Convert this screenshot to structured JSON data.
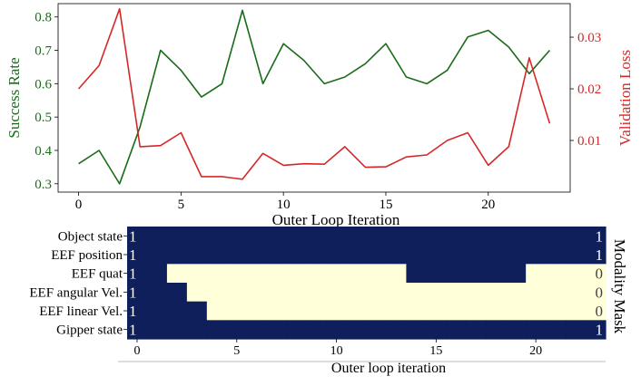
{
  "colors": {
    "green": "#1a6b1a",
    "red": "#d62728",
    "navy": "#0f1f5c",
    "cream": "#ffffd9"
  },
  "chart_data": [
    {
      "type": "line",
      "xlabel": "Outer Loop Iteration",
      "ylabel_left": "Success Rate",
      "ylabel_right": "Validation Loss",
      "x": [
        0,
        1,
        2,
        3,
        4,
        5,
        6,
        7,
        8,
        9,
        10,
        11,
        12,
        13,
        14,
        15,
        16,
        17,
        18,
        19,
        20,
        21,
        22,
        23
      ],
      "xlim": [
        -1,
        24
      ],
      "x_ticks": [
        0,
        5,
        10,
        15,
        20
      ],
      "ylim_left": [
        0.275,
        0.84
      ],
      "y_ticks_left": [
        0.3,
        0.4,
        0.5,
        0.6,
        0.7,
        0.8
      ],
      "ylim_right": [
        0.0,
        0.0365
      ],
      "y_ticks_right": [
        0.01,
        0.02,
        0.03
      ],
      "series": [
        {
          "axis": "left",
          "color": "#1a6b1a",
          "values": [
            0.36,
            0.4,
            0.3,
            0.47,
            0.7,
            0.64,
            0.56,
            0.6,
            0.82,
            0.6,
            0.72,
            0.67,
            0.6,
            0.62,
            0.66,
            0.72,
            0.62,
            0.6,
            0.64,
            0.74,
            0.76,
            0.71,
            0.63,
            0.7
          ]
        },
        {
          "axis": "right",
          "color": "#d62728",
          "values": [
            0.02,
            0.0245,
            0.0355,
            0.0088,
            0.009,
            0.0115,
            0.003,
            0.003,
            0.0025,
            0.0075,
            0.0052,
            0.0055,
            0.0054,
            0.0088,
            0.0048,
            0.0049,
            0.0068,
            0.0072,
            0.01,
            0.0115,
            0.0052,
            0.0088,
            0.026,
            0.0133
          ]
        }
      ]
    },
    {
      "type": "heatmap",
      "xlabel": "Outer loop iteration",
      "right_label": "Modality Mask",
      "rows": [
        "Object state",
        "EEF position",
        "EEF quat",
        "EEF angular Vel.",
        "EEF linear Vel.",
        "Gipper state"
      ],
      "x_ticks": [
        0,
        5,
        10,
        15,
        20
      ],
      "left_values": [
        "1",
        "1",
        "1",
        "1",
        "1",
        "1"
      ],
      "right_values": [
        "1",
        "1",
        "0",
        "0",
        "0",
        "1"
      ],
      "matrix": [
        [
          1,
          1,
          1,
          1,
          1,
          1,
          1,
          1,
          1,
          1,
          1,
          1,
          1,
          1,
          1,
          1,
          1,
          1,
          1,
          1,
          1,
          1,
          1,
          1
        ],
        [
          1,
          1,
          1,
          1,
          1,
          1,
          1,
          1,
          1,
          1,
          1,
          1,
          1,
          1,
          1,
          1,
          1,
          1,
          1,
          1,
          1,
          1,
          1,
          1
        ],
        [
          1,
          1,
          0,
          0,
          0,
          0,
          0,
          0,
          0,
          0,
          0,
          0,
          0,
          0,
          1,
          1,
          1,
          1,
          1,
          1,
          0,
          0,
          0,
          0
        ],
        [
          1,
          1,
          1,
          0,
          0,
          0,
          0,
          0,
          0,
          0,
          0,
          0,
          0,
          0,
          0,
          0,
          0,
          0,
          0,
          0,
          0,
          0,
          0,
          0
        ],
        [
          1,
          1,
          1,
          1,
          0,
          0,
          0,
          0,
          0,
          0,
          0,
          0,
          0,
          0,
          0,
          0,
          0,
          0,
          0,
          0,
          0,
          0,
          0,
          0
        ],
        [
          1,
          1,
          1,
          1,
          1,
          1,
          1,
          1,
          1,
          1,
          1,
          1,
          1,
          1,
          1,
          1,
          1,
          1,
          1,
          1,
          1,
          1,
          1,
          1
        ]
      ]
    }
  ]
}
